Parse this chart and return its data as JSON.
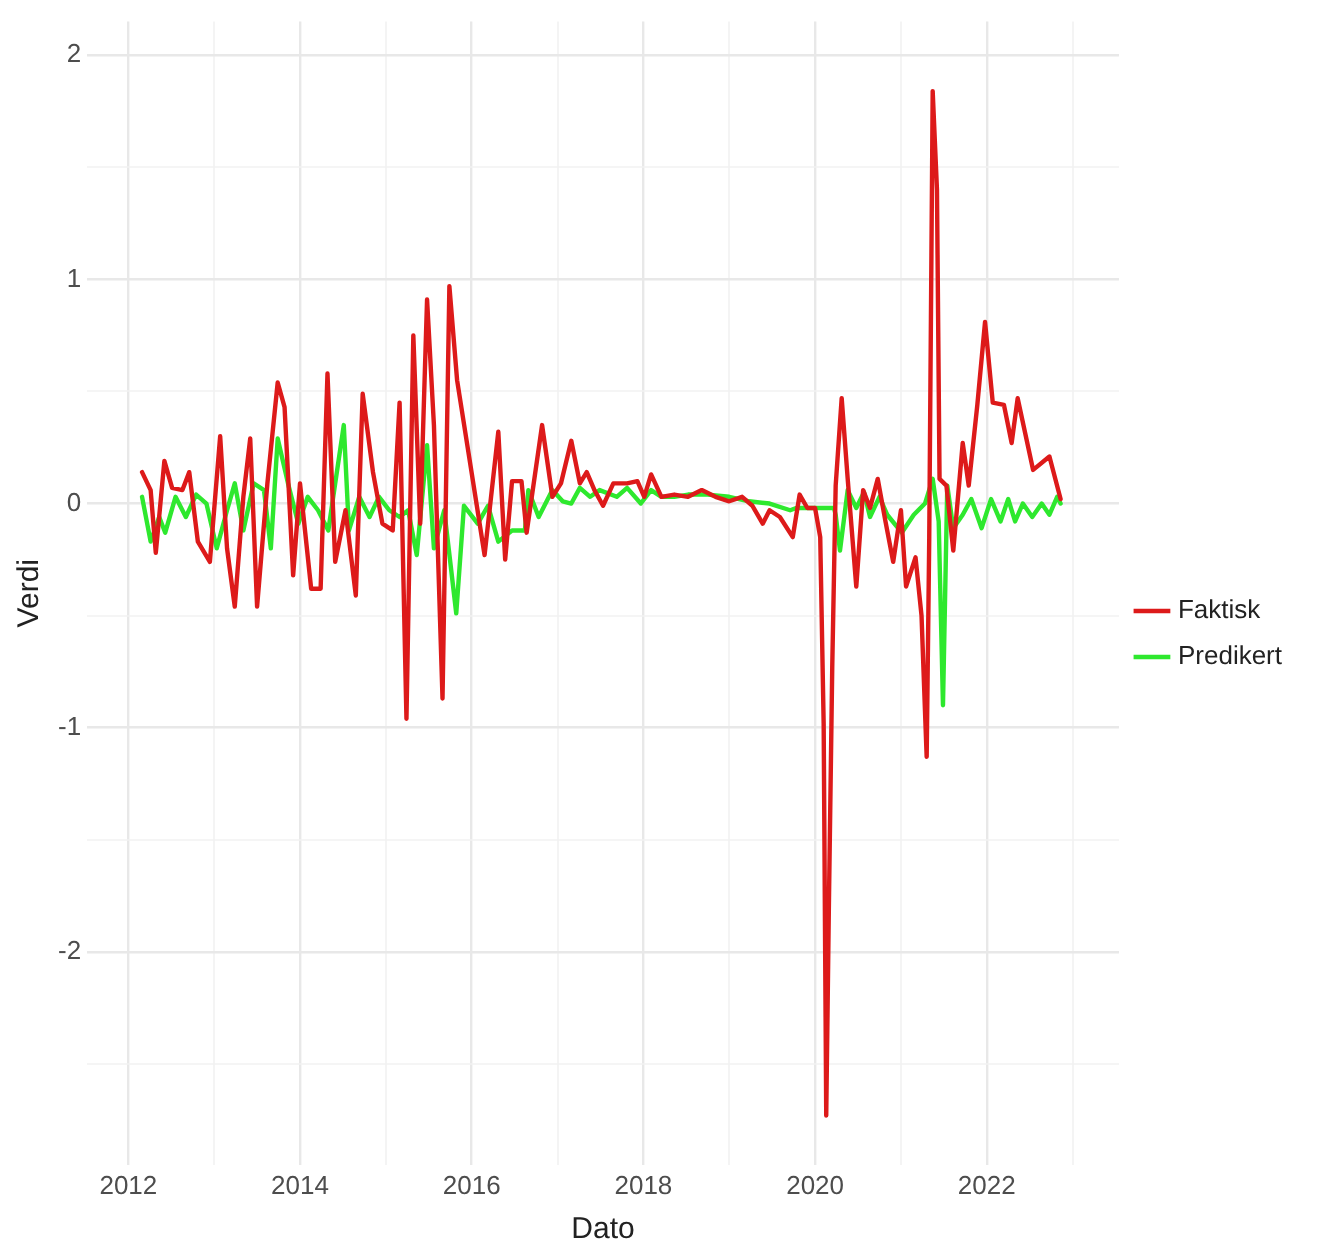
{
  "chart_data": {
    "type": "line",
    "xlabel": "Dato",
    "ylabel": "Verdi",
    "xlim": [
      2011.52,
      2023.54
    ],
    "ylim": [
      -2.95,
      2.15
    ],
    "xticks": [
      2012,
      {
        "value": 2013,
        "label": null
      },
      2014,
      {
        "value": 2015,
        "label": null
      },
      2016,
      {
        "value": 2017,
        "label": null
      },
      2018,
      {
        "value": 2019,
        "label": null
      },
      2020,
      {
        "value": 2021,
        "label": null
      },
      2022,
      {
        "value": 2023,
        "label": null
      }
    ],
    "yticks": [
      {
        "value": -2.5,
        "label": null
      },
      -2,
      {
        "value": -1.5,
        "label": null
      },
      -1,
      {
        "value": -0.5,
        "label": null
      },
      0,
      {
        "value": 0.5,
        "label": null
      },
      1,
      {
        "value": 1.5,
        "label": null
      },
      2
    ],
    "grid": true,
    "legend": "right",
    "marker": "none",
    "line_style": "solid",
    "series": [
      {
        "name": "Faktisk",
        "color": "#dd1a1a",
        "x": [
          2012.16,
          2012.26,
          2012.32,
          2012.42,
          2012.51,
          2012.63,
          2012.71,
          2012.81,
          2012.95,
          2013.07,
          2013.15,
          2013.24,
          2013.34,
          2013.42,
          2013.5,
          2013.62,
          2013.74,
          2013.82,
          2013.92,
          2014.0,
          2014.13,
          2014.24,
          2014.32,
          2014.41,
          2014.53,
          2014.65,
          2014.73,
          2014.85,
          2014.96,
          2015.08,
          2015.16,
          2015.24,
          2015.32,
          2015.4,
          2015.48,
          2015.56,
          2015.66,
          2015.74,
          2015.83,
          2016.15,
          2016.31,
          2016.39,
          2016.47,
          2016.58,
          2016.64,
          2016.82,
          2016.94,
          2017.04,
          2017.16,
          2017.26,
          2017.34,
          2017.43,
          2017.53,
          2017.65,
          2017.81,
          2017.93,
          2018.01,
          2018.09,
          2018.21,
          2018.36,
          2018.52,
          2018.68,
          2018.84,
          2019.0,
          2019.15,
          2019.27,
          2019.39,
          2019.47,
          2019.59,
          2019.74,
          2019.82,
          2019.91,
          2020.0,
          2020.06,
          2020.1,
          2020.13,
          2020.16,
          2020.2,
          2020.24,
          2020.31,
          2020.38,
          2020.48,
          2020.56,
          2020.64,
          2020.73,
          2020.82,
          2020.91,
          2021.0,
          2021.06,
          2021.17,
          2021.24,
          2021.3,
          2021.33,
          2021.37,
          2021.42,
          2021.45,
          2021.53,
          2021.61,
          2021.72,
          2021.79,
          2021.89,
          2021.98,
          2022.07,
          2022.2,
          2022.29,
          2022.36,
          2022.54,
          2022.73,
          2022.86
        ],
        "values": [
          0.14,
          0.06,
          -0.22,
          0.19,
          0.07,
          0.06,
          0.14,
          -0.17,
          -0.26,
          0.3,
          -0.2,
          -0.46,
          0.03,
          0.29,
          -0.46,
          0.09,
          0.54,
          0.43,
          -0.32,
          0.09,
          -0.38,
          -0.38,
          0.58,
          -0.26,
          -0.03,
          -0.41,
          0.49,
          0.14,
          -0.09,
          -0.12,
          0.45,
          -0.96,
          0.75,
          -0.09,
          0.91,
          0.35,
          -0.87,
          0.97,
          0.55,
          -0.23,
          0.32,
          -0.25,
          0.1,
          0.1,
          -0.13,
          0.35,
          0.03,
          0.09,
          0.28,
          0.09,
          0.14,
          0.06,
          -0.01,
          0.09,
          0.09,
          0.1,
          0.03,
          0.13,
          0.03,
          0.04,
          0.03,
          0.06,
          0.03,
          0.01,
          0.03,
          -0.01,
          -0.09,
          -0.03,
          -0.06,
          -0.15,
          0.04,
          -0.02,
          -0.02,
          -0.15,
          -0.98,
          -2.73,
          -1.82,
          -0.73,
          0.08,
          0.47,
          0.11,
          -0.37,
          0.06,
          -0.02,
          0.11,
          -0.08,
          -0.26,
          -0.03,
          -0.37,
          -0.24,
          -0.5,
          -1.13,
          -0.15,
          1.84,
          1.4,
          0.11,
          0.08,
          -0.21,
          0.27,
          0.08,
          0.44,
          0.81,
          0.45,
          0.44,
          0.27,
          0.47,
          0.15,
          0.21,
          0.02
        ]
      },
      {
        "name": "Predikert",
        "color": "#2ee82e",
        "x": [
          2012.16,
          2012.26,
          2012.36,
          2012.43,
          2012.55,
          2012.67,
          2012.79,
          2012.91,
          2013.03,
          2013.15,
          2013.24,
          2013.34,
          2013.46,
          2013.58,
          2013.66,
          2013.74,
          2013.86,
          2013.98,
          2014.09,
          2014.21,
          2014.33,
          2014.41,
          2014.51,
          2014.57,
          2014.69,
          2014.81,
          2014.92,
          2015.04,
          2015.16,
          2015.26,
          2015.36,
          2015.48,
          2015.56,
          2015.68,
          2015.82,
          2015.91,
          2016.07,
          2016.19,
          2016.31,
          2016.47,
          2016.62,
          2016.66,
          2016.78,
          2016.94,
          2017.06,
          2017.16,
          2017.26,
          2017.38,
          2017.49,
          2017.69,
          2017.81,
          2017.97,
          2018.09,
          2018.21,
          2018.36,
          2018.52,
          2018.75,
          2019.0,
          2019.23,
          2019.47,
          2019.71,
          2019.78,
          2020.22,
          2020.24,
          2020.29,
          2020.38,
          2020.48,
          2020.57,
          2020.64,
          2020.75,
          2020.84,
          2021.01,
          2021.15,
          2021.28,
          2021.37,
          2021.44,
          2021.49,
          2021.54,
          2021.61,
          2021.72,
          2021.82,
          2021.94,
          2022.05,
          2022.16,
          2022.25,
          2022.33,
          2022.42,
          2022.53,
          2022.64,
          2022.73,
          2022.82,
          2022.86
        ],
        "values": [
          0.03,
          -0.17,
          -0.06,
          -0.13,
          0.03,
          -0.06,
          0.04,
          0.0,
          -0.2,
          -0.03,
          0.09,
          -0.12,
          0.09,
          0.06,
          -0.2,
          0.29,
          0.09,
          -0.09,
          0.03,
          -0.03,
          -0.12,
          0.09,
          0.35,
          -0.12,
          0.03,
          -0.06,
          0.03,
          -0.03,
          -0.06,
          -0.03,
          -0.23,
          0.26,
          -0.2,
          -0.03,
          -0.49,
          -0.01,
          -0.09,
          -0.01,
          -0.17,
          -0.12,
          -0.12,
          0.06,
          -0.06,
          0.06,
          0.01,
          0.0,
          0.07,
          0.03,
          0.06,
          0.03,
          0.07,
          0.0,
          0.06,
          0.03,
          0.03,
          0.04,
          0.04,
          0.03,
          0.01,
          0.0,
          -0.03,
          -0.02,
          -0.02,
          -0.05,
          -0.21,
          0.06,
          -0.02,
          0.05,
          -0.06,
          0.03,
          -0.05,
          -0.13,
          -0.05,
          0.0,
          0.11,
          -0.08,
          -0.9,
          0.08,
          -0.11,
          -0.05,
          0.02,
          -0.11,
          0.02,
          -0.08,
          0.02,
          -0.08,
          0.0,
          -0.06,
          0.0,
          -0.05,
          0.03,
          0.0
        ]
      }
    ]
  }
}
